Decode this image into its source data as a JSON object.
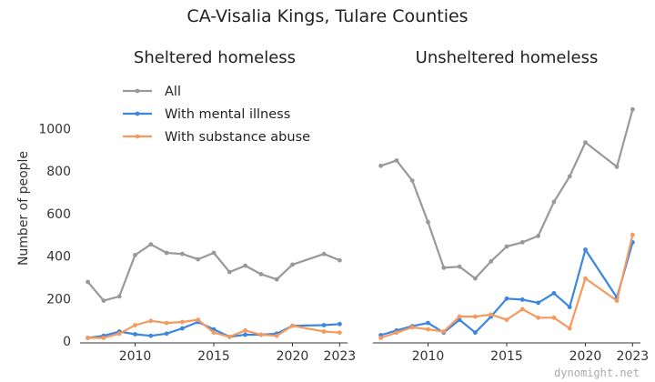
{
  "figure_title": "CA-Visalia Kings, Tulare Counties",
  "watermark": "dynomight.net",
  "ylabel": "Number of people",
  "legend_placement": "upper-left of left panel",
  "chart_data": [
    {
      "type": "line",
      "title": "Sheltered homeless",
      "xlabel": "",
      "ylabel": "Number of people",
      "xlim": [
        2006.5,
        2023.5
      ],
      "ylim": [
        0,
        1100
      ],
      "xticks": [
        "2010",
        "2015",
        "2020",
        "2023"
      ],
      "yticks": [
        "0",
        "200",
        "400",
        "600",
        "800",
        "1000"
      ],
      "grid": false,
      "series": [
        {
          "name": "All",
          "color": "#999999",
          "x": [
            2007,
            2008,
            2009,
            2010,
            2011,
            2012,
            2013,
            2014,
            2015,
            2016,
            2017,
            2018,
            2019,
            2020,
            2022,
            2023
          ],
          "y": [
            278,
            190,
            210,
            405,
            455,
            415,
            410,
            385,
            415,
            325,
            355,
            315,
            290,
            360,
            410,
            380
          ]
        },
        {
          "name": "With mental illness",
          "color": "#3a86e0",
          "x": [
            2007,
            2008,
            2009,
            2010,
            2011,
            2012,
            2013,
            2014,
            2015,
            2016,
            2017,
            2018,
            2019,
            2020,
            2022,
            2023
          ],
          "y": [
            15,
            25,
            45,
            32,
            25,
            35,
            60,
            90,
            55,
            20,
            30,
            30,
            35,
            72,
            75,
            80
          ]
        },
        {
          "name": "With substance abuse",
          "color": "#f59a5e",
          "x": [
            2007,
            2008,
            2009,
            2010,
            2011,
            2012,
            2013,
            2014,
            2015,
            2016,
            2017,
            2018,
            2019,
            2020,
            2022,
            2023
          ],
          "y": [
            15,
            15,
            35,
            75,
            95,
            85,
            90,
            100,
            40,
            20,
            50,
            30,
            25,
            72,
            45,
            40
          ]
        }
      ]
    },
    {
      "type": "line",
      "title": "Unsheltered homeless",
      "xlabel": "",
      "ylabel": "",
      "xlim": [
        2006.5,
        2023.5
      ],
      "ylim": [
        0,
        1100
      ],
      "xticks": [
        "2010",
        "2015",
        "2020",
        "2023"
      ],
      "yticks": [],
      "grid": false,
      "series": [
        {
          "name": "All",
          "color": "#999999",
          "x": [
            2007,
            2008,
            2009,
            2010,
            2011,
            2012,
            2013,
            2014,
            2015,
            2016,
            2017,
            2018,
            2019,
            2020,
            2022,
            2023
          ],
          "y": [
            825,
            850,
            755,
            560,
            345,
            350,
            295,
            375,
            445,
            465,
            495,
            655,
            775,
            935,
            820,
            1090
          ]
        },
        {
          "name": "With mental illness",
          "color": "#3a86e0",
          "x": [
            2007,
            2008,
            2009,
            2010,
            2011,
            2012,
            2013,
            2014,
            2015,
            2016,
            2017,
            2018,
            2019,
            2020,
            2022,
            2023
          ],
          "y": [
            28,
            50,
            70,
            85,
            40,
            100,
            40,
            115,
            200,
            195,
            180,
            225,
            160,
            430,
            205,
            465
          ]
        },
        {
          "name": "With substance abuse",
          "color": "#f59a5e",
          "x": [
            2007,
            2008,
            2009,
            2010,
            2011,
            2012,
            2013,
            2014,
            2015,
            2016,
            2017,
            2018,
            2019,
            2020,
            2022,
            2023
          ],
          "y": [
            15,
            40,
            65,
            55,
            45,
            115,
            115,
            125,
            100,
            150,
            110,
            110,
            60,
            295,
            190,
            500
          ]
        }
      ]
    }
  ]
}
